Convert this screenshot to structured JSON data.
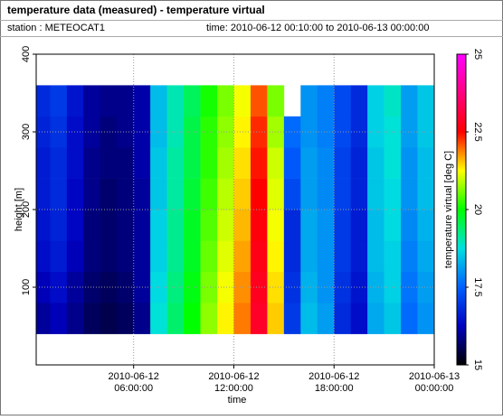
{
  "chart_data": {
    "type": "heatmap",
    "title": "temperature data (measured) - temperature virtual",
    "station": "station : METEOCAT1",
    "period": "time: 2010-06-12 00:10:00 to 2010-06-13 00:00:00",
    "xlabel": "time",
    "ylabel": "height [m]",
    "colorbar_label": "temperature virtual [deg C]",
    "x": [
      0.5,
      1.5,
      2.5,
      3.5,
      4.5,
      5.5,
      6.5,
      7.5,
      8.5,
      9.5,
      10.5,
      11.5,
      12.5,
      13.5,
      14.5,
      15.5,
      16.5,
      17.5,
      18.5,
      19.5,
      20.5,
      21.5,
      22.5,
      23.5
    ],
    "y": [
      60,
      100,
      140,
      180,
      220,
      260,
      300,
      340
    ],
    "z": [
      [
        16.0,
        16.2,
        15.9,
        15.6,
        15.5,
        15.6,
        15.9,
        18.8,
        19.4,
        20.0,
        20.7,
        21.3,
        21.9,
        22.9,
        21.5,
        17.0,
        18.4,
        18.1,
        16.8,
        16.4,
        18.2,
        18.5,
        17.6,
        18.0
      ],
      [
        16.2,
        16.4,
        16.0,
        15.7,
        15.6,
        15.7,
        16.0,
        18.7,
        19.3,
        19.9,
        20.6,
        21.2,
        21.8,
        22.8,
        21.4,
        16.9,
        18.3,
        18.0,
        16.9,
        16.5,
        18.3,
        18.6,
        17.7,
        18.1
      ],
      [
        16.4,
        16.6,
        16.2,
        15.8,
        15.7,
        15.8,
        16.0,
        18.6,
        19.2,
        19.8,
        20.5,
        21.1,
        21.7,
        22.7,
        21.3,
        16.8,
        18.2,
        18.0,
        17.0,
        16.6,
        18.4,
        18.6,
        17.8,
        18.2
      ],
      [
        16.5,
        16.7,
        16.3,
        15.8,
        15.7,
        15.8,
        16.0,
        18.6,
        19.2,
        19.8,
        20.4,
        21.0,
        21.6,
        22.6,
        21.2,
        16.8,
        18.2,
        18.0,
        17.0,
        16.6,
        18.4,
        18.7,
        17.9,
        18.3
      ],
      [
        16.6,
        16.8,
        16.3,
        15.9,
        15.7,
        15.8,
        16.0,
        18.5,
        19.1,
        19.7,
        20.3,
        20.9,
        21.5,
        22.5,
        21.1,
        17.2,
        18.1,
        17.9,
        17.1,
        16.7,
        18.5,
        18.7,
        18.0,
        18.4
      ],
      [
        16.6,
        16.8,
        16.4,
        15.9,
        15.8,
        15.8,
        16.1,
        18.5,
        19.1,
        19.6,
        20.2,
        20.8,
        21.4,
        22.4,
        21.0,
        17.4,
        18.1,
        17.9,
        17.1,
        16.7,
        18.5,
        18.8,
        18.0,
        18.4
      ],
      [
        16.7,
        16.9,
        16.4,
        16.0,
        15.8,
        15.9,
        16.1,
        18.4,
        19.0,
        19.6,
        20.2,
        20.7,
        21.3,
        22.3,
        20.8,
        17.6,
        18.0,
        17.8,
        17.2,
        16.8,
        18.6,
        18.8,
        18.1,
        18.5
      ],
      [
        16.8,
        17.0,
        16.5,
        16.0,
        15.9,
        15.9,
        16.1,
        18.4,
        19.0,
        19.5,
        20.1,
        20.6,
        21.2,
        22.1,
        20.6,
        null,
        18.0,
        17.8,
        17.2,
        16.8,
        18.6,
        18.9,
        18.1,
        18.5
      ]
    ],
    "xlim": [
      0.1667,
      24
    ],
    "xticks": [
      {
        "value": 6,
        "label": "2010-06-12 06:00:00"
      },
      {
        "value": 12,
        "label": "2010-06-12 12:00:00"
      },
      {
        "value": 18,
        "label": "2010-06-12 18:00:00"
      },
      {
        "value": 24,
        "label": "2010-06-13 00:00:00"
      }
    ],
    "ylim": [
      0,
      400
    ],
    "yticks": [
      100,
      200,
      300,
      400
    ],
    "clim": [
      15,
      25
    ],
    "cticks": [
      15,
      17.5,
      20,
      22.5,
      25
    ],
    "colormap": [
      "#000000",
      "#0000c0",
      "#0060ff",
      "#00e0e0",
      "#00ff00",
      "#ffff00",
      "#ff0000",
      "#ff0080",
      "#ff00ff"
    ],
    "grid": true
  }
}
